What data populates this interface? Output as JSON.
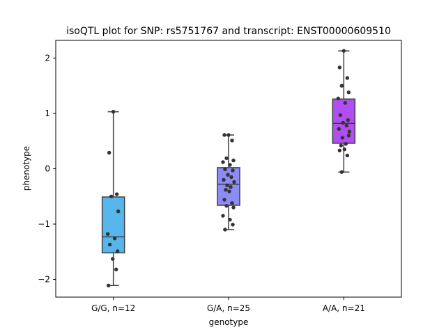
{
  "chart_data": {
    "type": "box",
    "title": "isoQTL plot for SNP: rs5751767 and transcript: ENST00000609510",
    "xlabel": "genotype",
    "ylabel": "phenotype",
    "ylim": [
      -2.32,
      2.32
    ],
    "yticks": [
      -2,
      -1,
      0,
      1,
      2
    ],
    "yticklabels": [
      "−2",
      "−1",
      "0",
      "1",
      "2"
    ],
    "grid": false,
    "groups": [
      {
        "label": "G/G, n=12",
        "color": "#56b6ec",
        "whisker_low": -2.11,
        "q1": -1.52,
        "median": -1.23,
        "q3": -0.51,
        "whisker_high": 1.03,
        "points": [
          1.03,
          0.29,
          -0.46,
          -0.5,
          -0.77,
          -1.18,
          -1.26,
          -1.37,
          -1.49,
          -1.63,
          -1.82,
          -2.11
        ]
      },
      {
        "label": "G/A, n=25",
        "color": "#8c8cf4",
        "whisker_low": -1.1,
        "q1": -0.66,
        "median": -0.28,
        "q3": 0.02,
        "whisker_high": 0.61,
        "points": [
          0.61,
          0.61,
          0.51,
          0.19,
          0.15,
          0.12,
          0.07,
          -0.01,
          -0.03,
          -0.11,
          -0.15,
          -0.2,
          -0.24,
          -0.3,
          -0.33,
          -0.38,
          -0.41,
          -0.56,
          -0.62,
          -0.67,
          -0.7,
          -0.85,
          -0.92,
          -1.01,
          -1.1
        ]
      },
      {
        "label": "A/A, n=21",
        "color": "#b04ef0",
        "whisker_low": -0.06,
        "q1": 0.46,
        "median": 0.82,
        "q3": 1.26,
        "whisker_high": 2.13,
        "points": [
          2.13,
          1.83,
          1.64,
          1.5,
          1.38,
          1.27,
          1.19,
          0.97,
          0.88,
          0.83,
          0.78,
          0.72,
          0.67,
          0.56,
          0.45,
          0.42,
          0.35,
          0.33,
          0.24,
          -0.06,
          0.6
        ]
      }
    ]
  }
}
